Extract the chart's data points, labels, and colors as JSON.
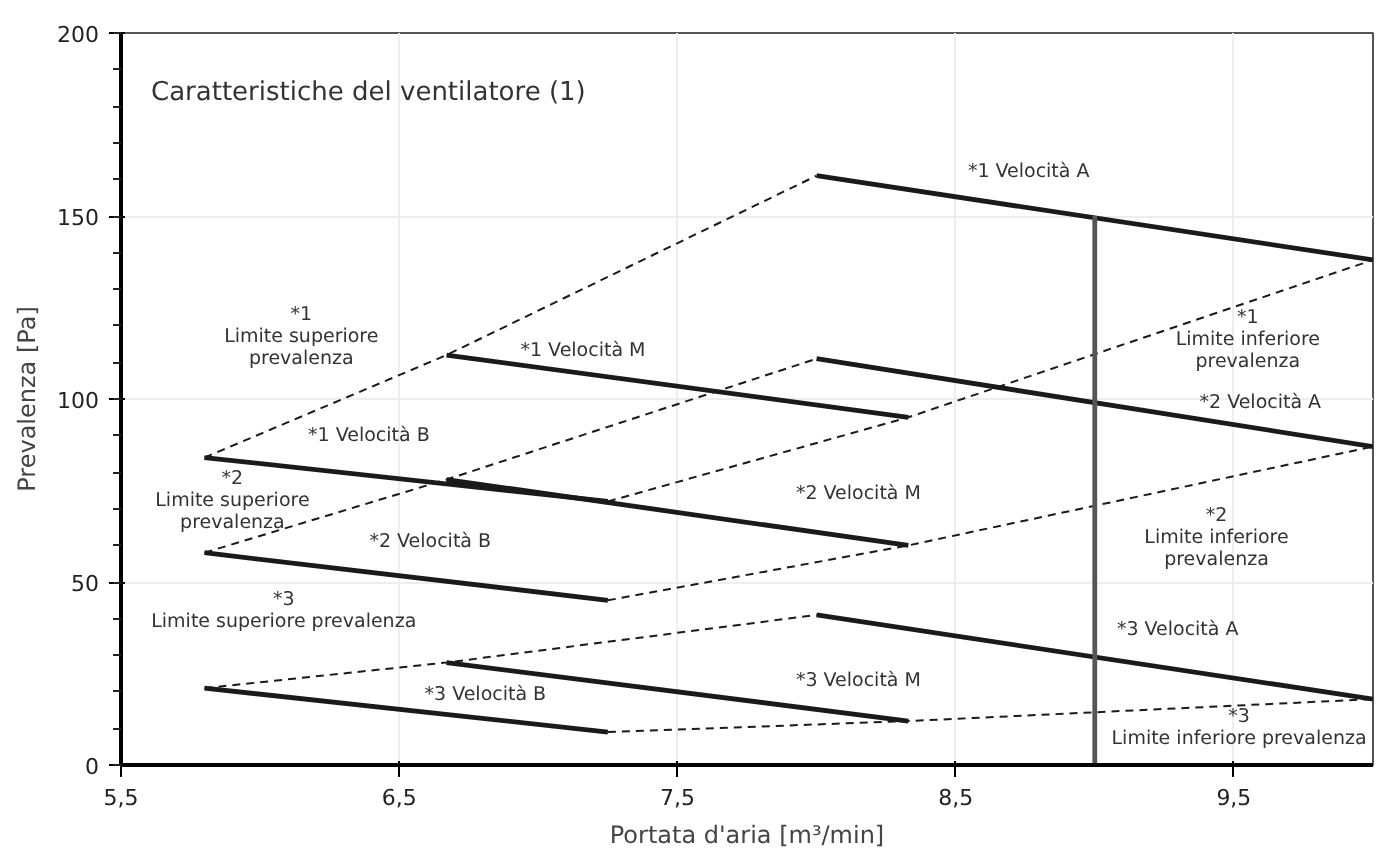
{
  "chart_data": {
    "type": "line",
    "title": "Caratteristiche del ventilatore (1)",
    "xlabel": "Portata d'aria [m³/min]",
    "ylabel": "Prevalenza [Pa]",
    "xlim": [
      5.5,
      10
    ],
    "ylim": [
      0,
      200
    ],
    "xticks": [
      {
        "value": 5.5,
        "label": "5,5"
      },
      {
        "value": 6.5,
        "label": "6,5"
      },
      {
        "value": 7.5,
        "label": "7,5"
      },
      {
        "value": 8.5,
        "label": "8,5"
      },
      {
        "value": 9.5,
        "label": "9,5"
      }
    ],
    "yticks": [
      0,
      50,
      100,
      150,
      200
    ],
    "grid": true,
    "marker": "none",
    "series": [
      {
        "color": "#1a1a1a",
        "line_style": "solid",
        "x": [
          8.0,
          10.0
        ],
        "values": [
          161,
          138
        ]
      },
      {
        "color": "#1a1a1a",
        "line_style": "solid",
        "x": [
          8.0,
          10.0
        ],
        "values": [
          111,
          87
        ]
      },
      {
        "color": "#1a1a1a",
        "line_style": "solid",
        "x": [
          8.0,
          10.0
        ],
        "values": [
          41,
          18
        ]
      },
      {
        "color": "#1a1a1a",
        "line_style": "solid",
        "x": [
          6.67,
          8.33
        ],
        "values": [
          112,
          95
        ]
      },
      {
        "color": "#1a1a1a",
        "line_style": "solid",
        "x": [
          6.67,
          8.33
        ],
        "values": [
          78,
          60
        ]
      },
      {
        "color": "#1a1a1a",
        "line_style": "solid",
        "x": [
          6.67,
          8.33
        ],
        "values": [
          28,
          12
        ]
      },
      {
        "color": "#1a1a1a",
        "line_style": "solid",
        "x": [
          5.8,
          7.25
        ],
        "values": [
          84,
          72
        ]
      },
      {
        "color": "#1a1a1a",
        "line_style": "solid",
        "x": [
          5.8,
          7.25
        ],
        "values": [
          58,
          45
        ]
      },
      {
        "color": "#1a1a1a",
        "line_style": "solid",
        "x": [
          5.8,
          7.25
        ],
        "values": [
          21,
          9
        ]
      },
      {
        "color": "#1a1a1a",
        "line_style": "dashed",
        "x": [
          5.8,
          6.67,
          8.0
        ],
        "values": [
          84,
          112,
          161
        ]
      },
      {
        "color": "#1a1a1a",
        "line_style": "dashed",
        "x": [
          5.8,
          6.67,
          8.0
        ],
        "values": [
          58,
          78,
          111
        ]
      },
      {
        "color": "#1a1a1a",
        "line_style": "dashed",
        "x": [
          5.8,
          6.67,
          8.0
        ],
        "values": [
          21,
          28,
          41
        ]
      },
      {
        "color": "#1a1a1a",
        "line_style": "dashed",
        "x": [
          7.25,
          8.33,
          10.0
        ],
        "values": [
          72,
          95,
          138
        ]
      },
      {
        "color": "#1a1a1a",
        "line_style": "dashed",
        "x": [
          7.25,
          8.33,
          10.0
        ],
        "values": [
          45,
          60,
          87
        ]
      },
      {
        "color": "#1a1a1a",
        "line_style": "dashed",
        "x": [
          7.25,
          8.33,
          10.0
        ],
        "values": [
          9,
          12,
          18
        ]
      },
      {
        "color": "#555555",
        "line_style": "solid",
        "x": [
          9.0,
          9.0
        ],
        "values": [
          0,
          150
        ]
      }
    ],
    "annotations": [
      "*1 Velocità A",
      "*1 Velocità M",
      "*1\nLimite superiore\nprevalenza",
      "*1 Velocità B",
      "*2\nLimite superiore\nprevalenza",
      "*2 Velocità B",
      "*3\nLimite superiore prevalenza",
      "*3 Velocità B",
      "*2 Velocità M",
      "*3 Velocità M",
      "*3 Velocità A",
      "*1\nLimite inferiore\nprevalenza",
      "*2 Velocità A",
      "*2\nLimite inferiore\nprevalenza",
      "*3\nLimite inferiore prevalenza"
    ]
  }
}
